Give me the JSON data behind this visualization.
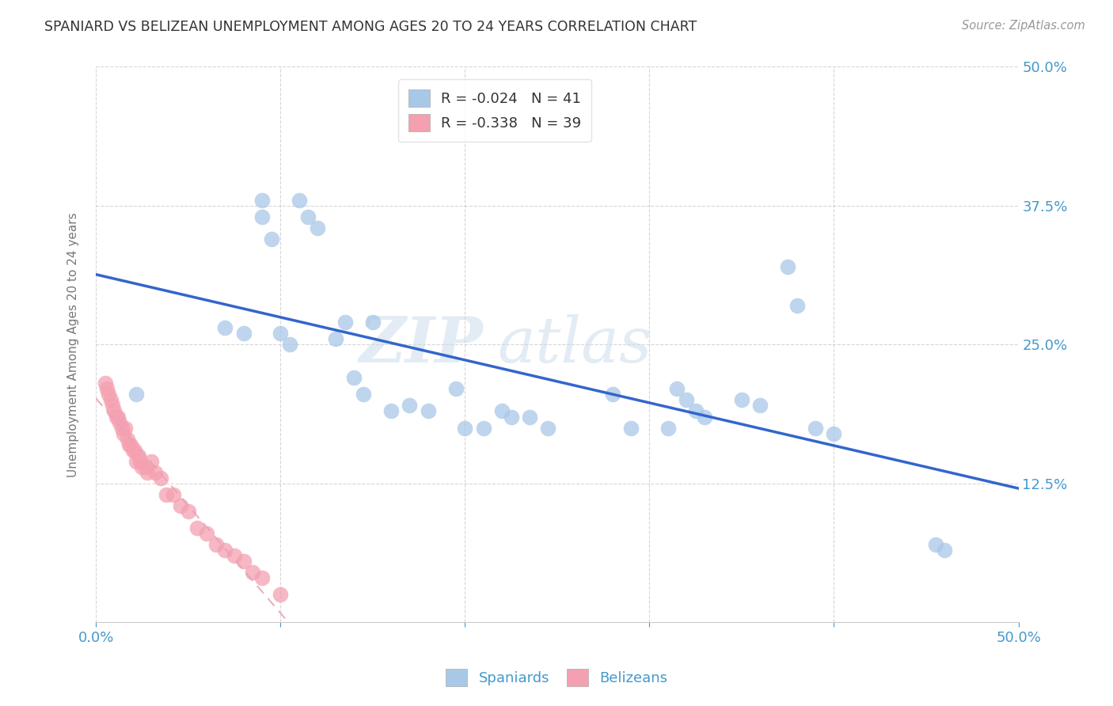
{
  "title": "SPANIARD VS BELIZEAN UNEMPLOYMENT AMONG AGES 20 TO 24 YEARS CORRELATION CHART",
  "source": "Source: ZipAtlas.com",
  "ylabel": "Unemployment Among Ages 20 to 24 years",
  "xlim": [
    0.0,
    0.5
  ],
  "ylim": [
    0.0,
    0.5
  ],
  "xticks": [
    0.0,
    0.1,
    0.2,
    0.3,
    0.4,
    0.5
  ],
  "yticks": [
    0.0,
    0.125,
    0.25,
    0.375,
    0.5
  ],
  "xtick_labels": [
    "0.0%",
    "",
    "",
    "",
    "",
    "50.0%"
  ],
  "ytick_labels_right": [
    "",
    "12.5%",
    "25.0%",
    "37.5%",
    "50.0%"
  ],
  "watermark_zip": "ZIP",
  "watermark_atlas": "atlas",
  "legend_r1": "R = -0.024",
  "legend_n1": "N = 41",
  "legend_r2": "R = -0.338",
  "legend_n2": "N = 39",
  "spaniard_color": "#a8c8e8",
  "belizean_color": "#f4a0b0",
  "spaniard_edge_color": "#88aacc",
  "belizean_edge_color": "#e080a0",
  "spaniard_line_color": "#3366cc",
  "belizean_line_color": "#e8a0b8",
  "background_color": "#ffffff",
  "grid_color": "#bbbbbb",
  "title_color": "#333333",
  "axis_tick_color": "#4499cc",
  "ylabel_color": "#777777",
  "spaniards_x": [
    0.022,
    0.07,
    0.08,
    0.09,
    0.09,
    0.095,
    0.1,
    0.105,
    0.11,
    0.115,
    0.12,
    0.13,
    0.135,
    0.14,
    0.145,
    0.15,
    0.16,
    0.17,
    0.18,
    0.195,
    0.2,
    0.21,
    0.22,
    0.225,
    0.235,
    0.245,
    0.28,
    0.29,
    0.31,
    0.315,
    0.32,
    0.325,
    0.33,
    0.35,
    0.36,
    0.375,
    0.38,
    0.39,
    0.4,
    0.455,
    0.46
  ],
  "spaniards_y": [
    0.205,
    0.265,
    0.26,
    0.38,
    0.365,
    0.345,
    0.26,
    0.25,
    0.38,
    0.365,
    0.355,
    0.255,
    0.27,
    0.22,
    0.205,
    0.27,
    0.19,
    0.195,
    0.19,
    0.21,
    0.175,
    0.175,
    0.19,
    0.185,
    0.185,
    0.175,
    0.205,
    0.175,
    0.175,
    0.21,
    0.2,
    0.19,
    0.185,
    0.2,
    0.195,
    0.32,
    0.285,
    0.175,
    0.17,
    0.07,
    0.065
  ],
  "belizeans_x": [
    0.005,
    0.006,
    0.007,
    0.008,
    0.009,
    0.01,
    0.011,
    0.012,
    0.013,
    0.014,
    0.015,
    0.016,
    0.017,
    0.018,
    0.019,
    0.02,
    0.021,
    0.022,
    0.023,
    0.024,
    0.025,
    0.027,
    0.028,
    0.03,
    0.032,
    0.035,
    0.038,
    0.042,
    0.046,
    0.05,
    0.055,
    0.06,
    0.065,
    0.07,
    0.075,
    0.08,
    0.085,
    0.09,
    0.1
  ],
  "belizeans_y": [
    0.215,
    0.21,
    0.205,
    0.2,
    0.195,
    0.19,
    0.185,
    0.185,
    0.18,
    0.175,
    0.17,
    0.175,
    0.165,
    0.16,
    0.16,
    0.155,
    0.155,
    0.145,
    0.15,
    0.145,
    0.14,
    0.14,
    0.135,
    0.145,
    0.135,
    0.13,
    0.115,
    0.115,
    0.105,
    0.1,
    0.085,
    0.08,
    0.07,
    0.065,
    0.06,
    0.055,
    0.045,
    0.04,
    0.025
  ]
}
